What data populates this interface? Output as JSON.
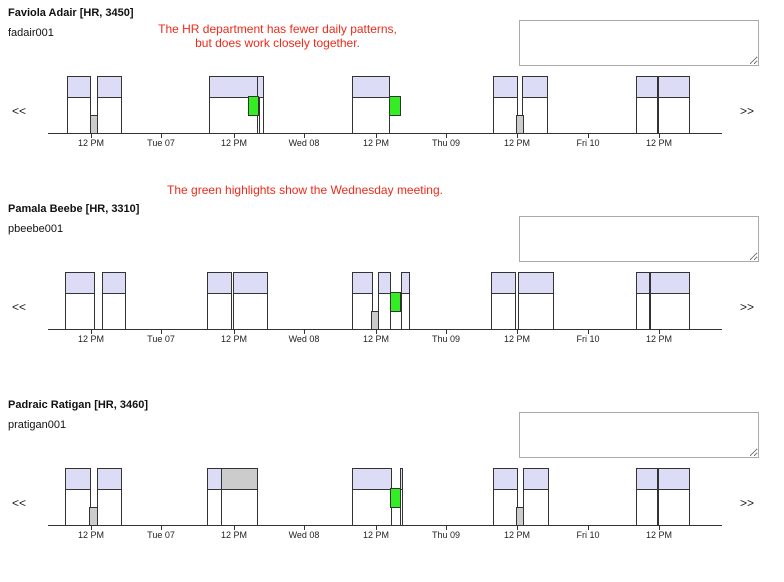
{
  "annotations": [
    "The HR department has fewer daily patterns,\nbut does work closely together.",
    "The green highlights show the Wednesday meeting."
  ],
  "nav": {
    "prev_label": "<<",
    "next_label": ">>"
  },
  "colors": {
    "block": "#dcdcf7",
    "meeting": "#33ee22",
    "gray": "#cccccc",
    "annotation": "#ee2a1a"
  },
  "axis_ticks": [
    "12 PM",
    "Tue 07",
    "12 PM",
    "Wed 08",
    "12 PM",
    "Thu 09",
    "12 PM",
    "Fri 10",
    "12 PM"
  ],
  "people": [
    {
      "name": "Faviola Adair [HR, 3450]",
      "userid": "fadair001",
      "note": "",
      "blocks": [
        [
          0,
          0
        ],
        [
          1,
          0
        ],
        [
          2,
          0
        ],
        [
          3,
          0
        ],
        [
          4,
          0
        ],
        [
          5,
          0
        ],
        [
          6,
          0
        ],
        [
          7,
          0
        ],
        [
          8,
          0
        ]
      ]
    },
    {
      "name": "Pamala Beebe [HR, 3310]",
      "userid": "pbeebe001",
      "note": "",
      "blocks": []
    },
    {
      "name": "Padraic Ratigan [HR, 3460]",
      "userid": "pratigan001",
      "note": "",
      "blocks": []
    }
  ]
}
